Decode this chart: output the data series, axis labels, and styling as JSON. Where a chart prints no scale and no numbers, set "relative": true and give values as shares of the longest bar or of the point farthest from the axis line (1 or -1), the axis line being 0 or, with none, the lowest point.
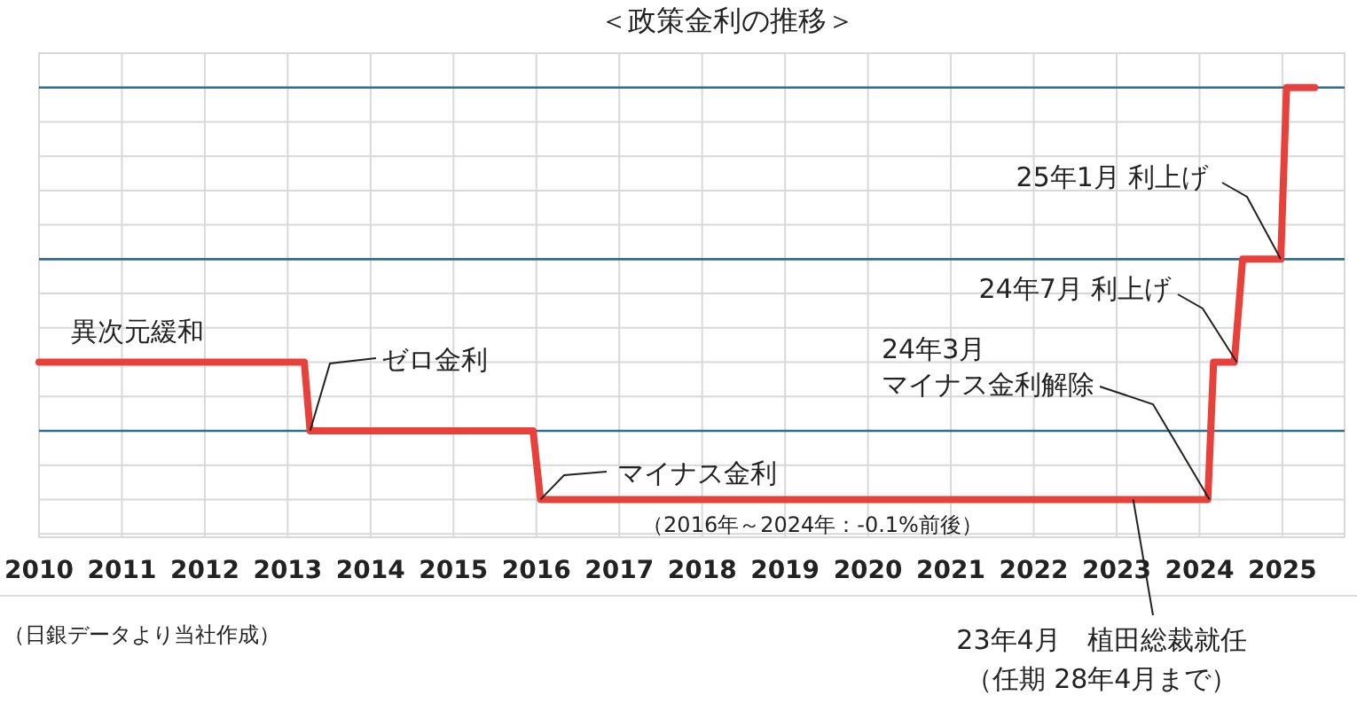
{
  "chart_data": {
    "type": "line",
    "title": "＜政策金利の推移＞",
    "relative": true,
    "color": "#e8403a",
    "x": [
      2010,
      2013.2,
      2013.27,
      2015.96,
      2016.05,
      2024.1,
      2024.17,
      2024.42,
      2024.52,
      2024.98,
      2025.05,
      2025.39
    ],
    "values": [
      0.2,
      0.2,
      0,
      0,
      -0.2,
      -0.2,
      0.2,
      0.2,
      0.5,
      0.5,
      1,
      1
    ],
    "xlim": [
      2010,
      2025.75
    ],
    "xticks": [
      2010,
      2011,
      2012,
      2013,
      2014,
      2015,
      2016,
      2017,
      2018,
      2019,
      2020,
      2021,
      2022,
      2023,
      2024,
      2025
    ],
    "grid": true,
    "ref_lines": [
      {
        "axis": "y",
        "value": 0,
        "color": "#2f6e8e"
      },
      {
        "axis": "y",
        "value": 0.5,
        "color": "#2f6e8e"
      },
      {
        "axis": "y",
        "value": 1,
        "color": "#2f6e8e"
      }
    ],
    "annotations": [
      "異次元緩和",
      {
        "text": "ゼロ金利",
        "x": 2013.27,
        "y": 0
      },
      {
        "text": "マイナス金利",
        "x": 2016.05,
        "y": -0.2
      },
      "（2016年～2024年：-0.1%前後）",
      "24年3月",
      {
        "text": "マイナス金利解除",
        "x": 2024.12,
        "y": -0.2
      },
      {
        "text": "24年7月 利上げ",
        "x": 2024.45,
        "y": 0.2
      },
      {
        "text": "25年1月 利上げ",
        "x": 2024.98,
        "y": 0.5
      },
      {
        "text": "23年4月　植田総裁就任",
        "x": 2023.2,
        "y": -0.2
      },
      "（任期 28年4月まで）",
      "（日銀データより当社作成）"
    ]
  }
}
